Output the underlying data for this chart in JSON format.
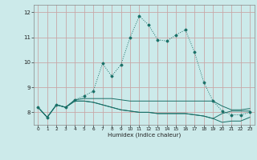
{
  "title": "",
  "xlabel": "Humidex (Indice chaleur)",
  "xlim": [
    -0.5,
    23.5
  ],
  "ylim": [
    7.5,
    12.3
  ],
  "xticks": [
    0,
    1,
    2,
    3,
    4,
    5,
    6,
    7,
    8,
    9,
    10,
    11,
    12,
    13,
    14,
    15,
    16,
    17,
    18,
    19,
    20,
    21,
    22,
    23
  ],
  "yticks": [
    8,
    9,
    10,
    11,
    12
  ],
  "bg_color": "#cceaea",
  "grid_color": "#c8a8a8",
  "line_color": "#1a7068",
  "series_dotted": [
    8.2,
    7.8,
    8.3,
    8.2,
    8.5,
    8.65,
    8.85,
    9.95,
    9.45,
    9.9,
    11.0,
    11.85,
    11.5,
    10.9,
    10.85,
    11.1,
    11.3,
    10.4,
    9.2,
    8.45,
    8.05,
    7.9,
    7.9,
    8.0
  ],
  "series_flat1": [
    8.2,
    7.8,
    8.3,
    8.2,
    8.5,
    8.55,
    8.55,
    8.55,
    8.55,
    8.5,
    8.45,
    8.45,
    8.45,
    8.45,
    8.45,
    8.45,
    8.45,
    8.45,
    8.45,
    8.45,
    8.25,
    8.1,
    8.1,
    8.15
  ],
  "series_flat2": [
    8.2,
    7.8,
    8.3,
    8.2,
    8.45,
    8.45,
    8.4,
    8.3,
    8.2,
    8.1,
    8.05,
    8.0,
    8.0,
    7.95,
    7.95,
    7.95,
    7.95,
    7.9,
    7.85,
    7.75,
    7.6,
    7.65,
    7.65,
    7.8
  ],
  "series_flat3": [
    8.2,
    7.8,
    8.3,
    8.2,
    8.45,
    8.45,
    8.4,
    8.3,
    8.2,
    8.1,
    8.05,
    8.0,
    8.0,
    7.95,
    7.95,
    7.95,
    7.95,
    7.9,
    7.85,
    7.75,
    7.95,
    8.05,
    8.05,
    8.05
  ]
}
